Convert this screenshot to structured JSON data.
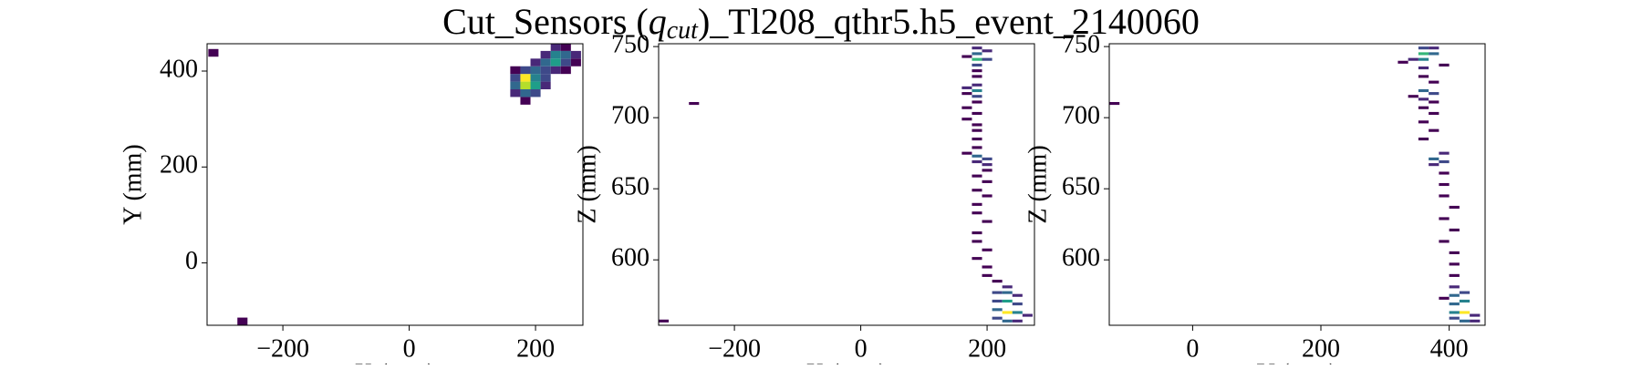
{
  "title": [
    "Cut_Sensors (",
    "q",
    "cut",
    ")_Tl208_qthr5.h5_event_2140060"
  ],
  "chart_data": [
    {
      "type": "heatmap",
      "colormap": "viridis",
      "xlabel": "X (mm)",
      "ylabel": "Y (mm)",
      "xlim": [
        -320,
        275
      ],
      "ylim": [
        -130,
        457
      ],
      "bin_size": [
        16,
        16
      ],
      "xticks": [
        {
          "value": -200,
          "label": "−200"
        },
        0,
        200
      ],
      "yticks": [
        0,
        200,
        400
      ],
      "cells": [
        [
          -318,
          430,
          1
        ],
        [
          -272,
          -130,
          1
        ],
        [
          176,
          330,
          1
        ],
        [
          160,
          346,
          2
        ],
        [
          176,
          346,
          4
        ],
        [
          192,
          346,
          3
        ],
        [
          160,
          362,
          4
        ],
        [
          176,
          362,
          9
        ],
        [
          192,
          362,
          6
        ],
        [
          208,
          362,
          2
        ],
        [
          160,
          378,
          3
        ],
        [
          176,
          378,
          10
        ],
        [
          192,
          378,
          5
        ],
        [
          208,
          378,
          3
        ],
        [
          176,
          394,
          3
        ],
        [
          192,
          394,
          4
        ],
        [
          208,
          394,
          3
        ],
        [
          192,
          410,
          2
        ],
        [
          208,
          410,
          4
        ],
        [
          224,
          410,
          6
        ],
        [
          240,
          410,
          3
        ],
        [
          256,
          410,
          1
        ],
        [
          208,
          426,
          2
        ],
        [
          224,
          426,
          5
        ],
        [
          240,
          426,
          4
        ],
        [
          256,
          426,
          2
        ],
        [
          224,
          442,
          2
        ],
        [
          240,
          442,
          1
        ],
        [
          160,
          394,
          1
        ],
        [
          224,
          394,
          2
        ],
        [
          240,
          394,
          1
        ]
      ]
    },
    {
      "type": "heatmap",
      "colormap": "viridis",
      "xlabel": "X (mm)",
      "ylabel": "Z (mm)",
      "xlim": [
        -320,
        275
      ],
      "ylim": [
        554,
        752
      ],
      "bin_size": [
        16,
        2
      ],
      "xticks": [
        {
          "value": -200,
          "label": "−200"
        },
        0,
        200
      ],
      "yticks": [
        600,
        650,
        700,
        750
      ],
      "cells": [
        [
          176,
          748,
          2
        ],
        [
          176,
          744,
          4
        ],
        [
          176,
          740,
          7
        ],
        [
          192,
          740,
          3
        ],
        [
          176,
          736,
          3
        ],
        [
          160,
          742,
          1
        ],
        [
          192,
          746,
          2
        ],
        [
          176,
          732,
          1
        ],
        [
          176,
          728,
          1
        ],
        [
          160,
          720,
          2
        ],
        [
          176,
          718,
          5
        ],
        [
          176,
          714,
          3
        ],
        [
          160,
          716,
          1
        ],
        [
          176,
          722,
          2
        ],
        [
          176,
          710,
          1
        ],
        [
          160,
          706,
          1
        ],
        [
          176,
          702,
          1
        ],
        [
          160,
          698,
          1
        ],
        [
          176,
          694,
          1
        ],
        [
          176,
          690,
          1
        ],
        [
          176,
          684,
          1
        ],
        [
          176,
          672,
          4
        ],
        [
          192,
          670,
          3
        ],
        [
          176,
          668,
          2
        ],
        [
          192,
          666,
          2
        ],
        [
          160,
          674,
          1
        ],
        [
          176,
          678,
          1
        ],
        [
          192,
          662,
          1
        ],
        [
          176,
          658,
          1
        ],
        [
          192,
          654,
          1
        ],
        [
          176,
          648,
          1
        ],
        [
          192,
          644,
          1
        ],
        [
          176,
          638,
          1
        ],
        [
          176,
          632,
          1
        ],
        [
          192,
          626,
          1
        ],
        [
          176,
          618,
          1
        ],
        [
          176,
          612,
          1
        ],
        [
          192,
          606,
          1
        ],
        [
          176,
          600,
          1
        ],
        [
          192,
          594,
          1
        ],
        [
          192,
          588,
          1
        ],
        [
          208,
          584,
          1
        ],
        [
          224,
          580,
          2
        ],
        [
          208,
          576,
          3
        ],
        [
          224,
          576,
          4
        ],
        [
          240,
          574,
          2
        ],
        [
          208,
          570,
          3
        ],
        [
          224,
          570,
          6
        ],
        [
          240,
          568,
          3
        ],
        [
          208,
          564,
          4
        ],
        [
          224,
          562,
          10
        ],
        [
          240,
          562,
          5
        ],
        [
          256,
          560,
          2
        ],
        [
          208,
          558,
          3
        ],
        [
          224,
          556,
          4
        ],
        [
          240,
          556,
          2
        ],
        [
          -272,
          709,
          1
        ],
        [
          -320,
          556,
          1
        ]
      ]
    },
    {
      "type": "heatmap",
      "colormap": "viridis",
      "xlabel": "Y (mm)",
      "ylabel": "Z (mm)",
      "xlim": [
        -130,
        456
      ],
      "ylim": [
        554,
        752
      ],
      "bin_size": [
        16,
        2
      ],
      "xticks": [
        0,
        200,
        400
      ],
      "yticks": [
        600,
        650,
        700,
        750
      ],
      "cells": [
        [
          352,
          744,
          7
        ],
        [
          368,
          744,
          4
        ],
        [
          352,
          740,
          5
        ],
        [
          336,
          740,
          2
        ],
        [
          368,
          748,
          2
        ],
        [
          352,
          748,
          3
        ],
        [
          320,
          738,
          1
        ],
        [
          384,
          736,
          1
        ],
        [
          352,
          734,
          2
        ],
        [
          352,
          728,
          1
        ],
        [
          368,
          724,
          1
        ],
        [
          352,
          718,
          4
        ],
        [
          368,
          716,
          3
        ],
        [
          336,
          714,
          1
        ],
        [
          352,
          712,
          2
        ],
        [
          368,
          710,
          1
        ],
        [
          352,
          706,
          1
        ],
        [
          368,
          702,
          1
        ],
        [
          352,
          696,
          1
        ],
        [
          368,
          690,
          1
        ],
        [
          352,
          684,
          1
        ],
        [
          368,
          670,
          4
        ],
        [
          384,
          668,
          3
        ],
        [
          368,
          666,
          2
        ],
        [
          384,
          674,
          2
        ],
        [
          384,
          660,
          1
        ],
        [
          384,
          652,
          1
        ],
        [
          384,
          644,
          1
        ],
        [
          400,
          636,
          1
        ],
        [
          384,
          628,
          1
        ],
        [
          400,
          620,
          1
        ],
        [
          384,
          612,
          1
        ],
        [
          400,
          604,
          1
        ],
        [
          400,
          596,
          1
        ],
        [
          400,
          588,
          1
        ],
        [
          400,
          580,
          2
        ],
        [
          416,
          576,
          3
        ],
        [
          400,
          574,
          4
        ],
        [
          384,
          572,
          1
        ],
        [
          416,
          570,
          5
        ],
        [
          400,
          568,
          4
        ],
        [
          416,
          562,
          10
        ],
        [
          400,
          562,
          5
        ],
        [
          432,
          560,
          2
        ],
        [
          400,
          558,
          3
        ],
        [
          416,
          556,
          4
        ],
        [
          432,
          556,
          2
        ],
        [
          -130,
          709,
          1
        ]
      ]
    }
  ]
}
